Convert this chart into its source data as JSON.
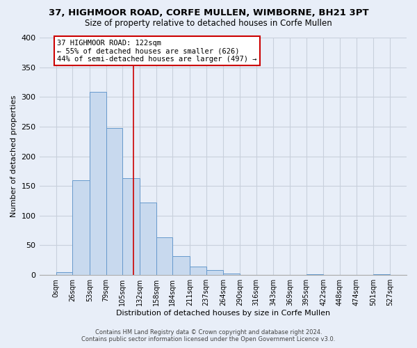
{
  "title": "37, HIGHMOOR ROAD, CORFE MULLEN, WIMBORNE, BH21 3PT",
  "subtitle": "Size of property relative to detached houses in Corfe Mullen",
  "xlabel": "Distribution of detached houses by size in Corfe Mullen",
  "ylabel": "Number of detached properties",
  "bin_edges": [
    0,
    26,
    53,
    79,
    105,
    132,
    158,
    184,
    211,
    237,
    264,
    290,
    316,
    343,
    369,
    395,
    422,
    448,
    474,
    501,
    527
  ],
  "bin_counts": [
    5,
    160,
    308,
    248,
    163,
    122,
    64,
    32,
    14,
    8,
    2,
    0,
    0,
    0,
    0,
    1,
    0,
    0,
    0,
    1
  ],
  "bar_color": "#c8d9ee",
  "bar_edge_color": "#6699cc",
  "vline_x": 122,
  "vline_color": "#cc0000",
  "ylim": [
    0,
    400
  ],
  "yticks": [
    0,
    50,
    100,
    150,
    200,
    250,
    300,
    350,
    400
  ],
  "annotation_title": "37 HIGHMOOR ROAD: 122sqm",
  "annotation_line1": "← 55% of detached houses are smaller (626)",
  "annotation_line2": "44% of semi-detached houses are larger (497) →",
  "annotation_box_color": "#ffffff",
  "annotation_box_edge": "#cc0000",
  "footer_line1": "Contains HM Land Registry data © Crown copyright and database right 2024.",
  "footer_line2": "Contains public sector information licensed under the Open Government Licence v3.0.",
  "background_color": "#e8eef8",
  "grid_color": "#c8d0dc",
  "tick_labels": [
    "0sqm",
    "26sqm",
    "53sqm",
    "79sqm",
    "105sqm",
    "132sqm",
    "158sqm",
    "184sqm",
    "211sqm",
    "237sqm",
    "264sqm",
    "290sqm",
    "316sqm",
    "343sqm",
    "369sqm",
    "395sqm",
    "422sqm",
    "448sqm",
    "474sqm",
    "501sqm",
    "527sqm"
  ]
}
